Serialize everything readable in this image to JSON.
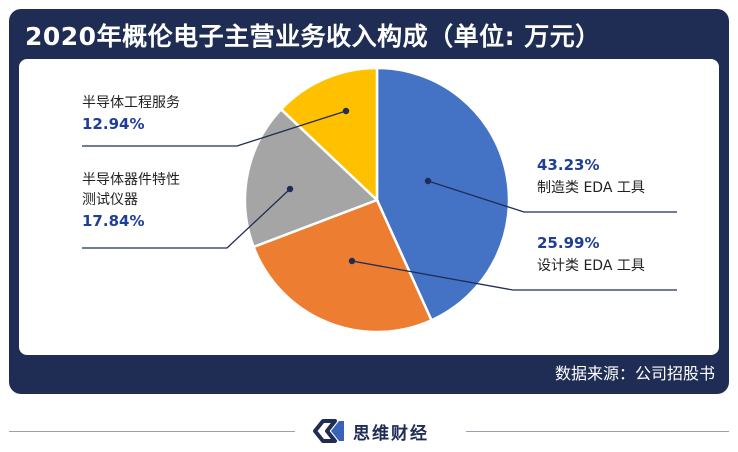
{
  "title": "2020年概伦电子主营业务收入构成（单位: 万元）",
  "source": "数据来源：公司招股书",
  "brand": {
    "name": "思维财经",
    "logo_icon": "swcj-logo-icon"
  },
  "colors": {
    "frame": "#1f2d55",
    "pct_text": "#1f3f96"
  },
  "chart_data": {
    "type": "pie",
    "title": "2020年概伦电子主营业务收入构成（单位: 万元）",
    "start_angle_deg": 0,
    "direction": "clockwise",
    "slices": [
      {
        "label": "制造类 EDA 工具",
        "value": 43.23,
        "percent_label": "43.23%",
        "color": "#4472c4"
      },
      {
        "label": "设计类 EDA 工具",
        "value": 25.99,
        "percent_label": "25.99%",
        "color": "#ed7d31"
      },
      {
        "label": "半导体器件特性测试仪器",
        "label_lines": [
          "半导体器件特性",
          "测试仪器"
        ],
        "value": 17.84,
        "percent_label": "17.84%",
        "color": "#a5a5a5"
      },
      {
        "label": "半导体工程服务",
        "value": 12.94,
        "percent_label": "12.94%",
        "color": "#ffc000"
      }
    ]
  }
}
